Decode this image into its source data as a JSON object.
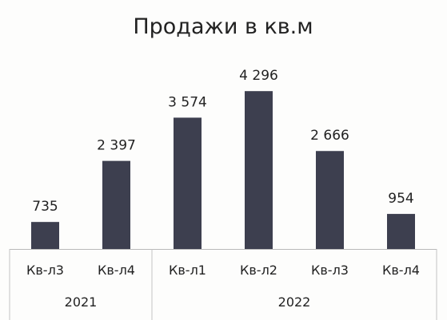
{
  "chart_data": {
    "type": "bar",
    "title": "Продажи в кв.м",
    "categories": [
      "Кв-л3",
      "Кв-л4",
      "Кв-л1",
      "Кв-л2",
      "Кв-л3",
      "Кв-л4"
    ],
    "category_groups": [
      {
        "label": "2021",
        "count": 2
      },
      {
        "label": "2022",
        "count": 4
      }
    ],
    "values": [
      735,
      2397,
      3574,
      4296,
      2666,
      954
    ],
    "data_labels": [
      "735",
      "2 397",
      "3 574",
      "4 296",
      "2 666",
      "954"
    ],
    "xlabel": "",
    "ylabel": "",
    "ylim": [
      0,
      4300
    ],
    "grid": false,
    "legend": "none",
    "bar_color": "#3d3f4f"
  }
}
